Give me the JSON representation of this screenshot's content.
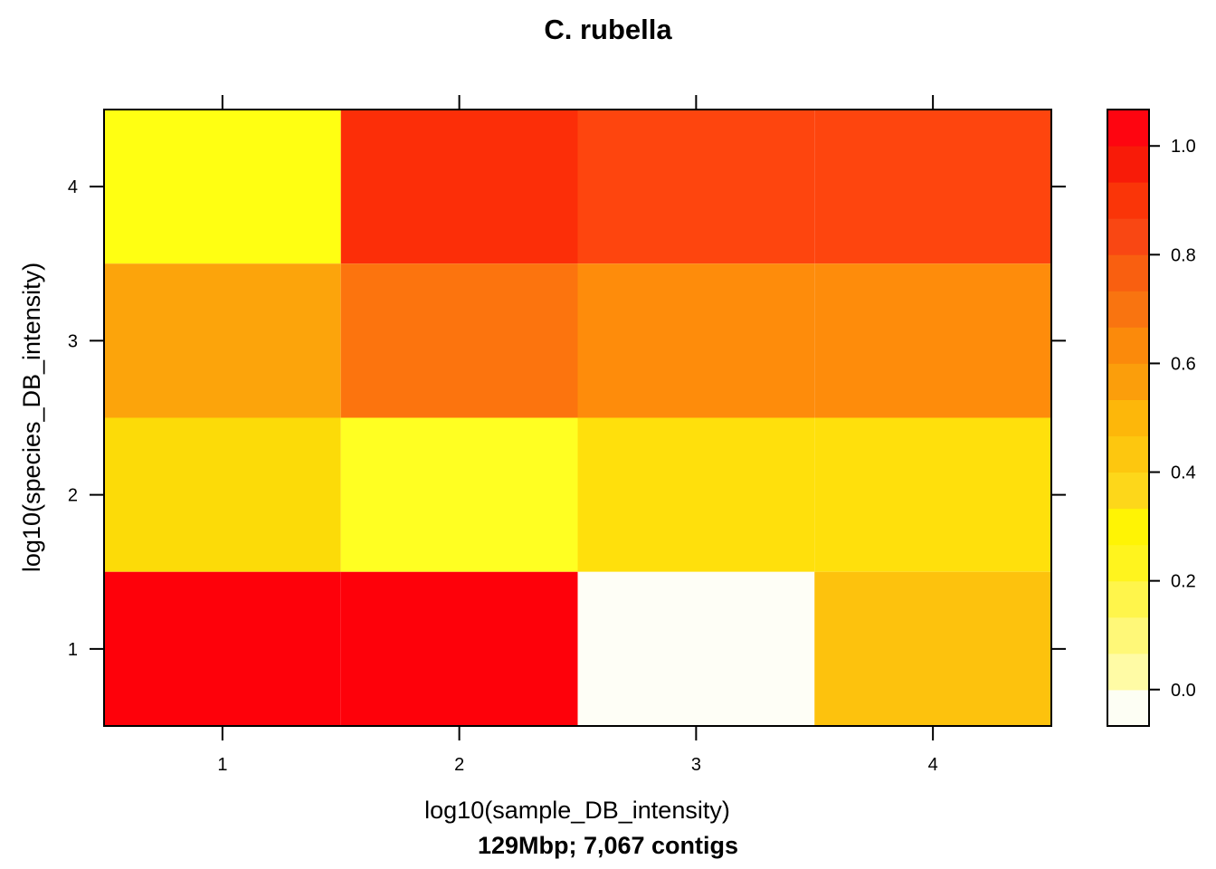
{
  "chart_data": {
    "type": "heatmap",
    "title": "C. rubella",
    "xlabel": "log10(sample_DB_intensity)",
    "ylabel": "log10(species_DB_intensity)",
    "subtitle": "129Mbp; 7,067 contigs",
    "x_ticks": [
      "1",
      "2",
      "3",
      "4"
    ],
    "y_ticks": [
      "1",
      "2",
      "3",
      "4"
    ],
    "xlim": [
      0.5,
      4.5
    ],
    "ylim": [
      0.5,
      4.5
    ],
    "colorbar": {
      "ticks": [
        "0.0",
        "0.2",
        "0.4",
        "0.6",
        "0.8",
        "1.0"
      ],
      "tick_values": [
        0.0,
        0.2,
        0.4,
        0.6,
        0.8,
        1.0
      ],
      "range": [
        -0.067,
        1.067
      ],
      "colors": [
        "#fdfef4",
        "#fffba5",
        "#fff878",
        "#fff54b",
        "#fff41e",
        "#fff404",
        "#fdd71a",
        "#fdc70f",
        "#fdb70a",
        "#fb9e0b",
        "#fb8a0b",
        "#f97410",
        "#f95f10",
        "#f94713",
        "#fa3508",
        "#f81b08",
        "#fe0510"
      ]
    },
    "cells": [
      {
        "x": 1,
        "y": 4,
        "value": 0.28,
        "color": "#ffff12"
      },
      {
        "x": 2,
        "y": 4,
        "value": 0.86,
        "color": "#fc2e08"
      },
      {
        "x": 3,
        "y": 4,
        "value": 0.8,
        "color": "#fe450e"
      },
      {
        "x": 4,
        "y": 4,
        "value": 0.8,
        "color": "#fe450e"
      },
      {
        "x": 1,
        "y": 3,
        "value": 0.52,
        "color": "#fca40b"
      },
      {
        "x": 2,
        "y": 3,
        "value": 0.66,
        "color": "#fc740e"
      },
      {
        "x": 3,
        "y": 3,
        "value": 0.57,
        "color": "#fe8c0b"
      },
      {
        "x": 4,
        "y": 3,
        "value": 0.57,
        "color": "#fe8c0b"
      },
      {
        "x": 1,
        "y": 2,
        "value": 0.36,
        "color": "#fcdb08"
      },
      {
        "x": 2,
        "y": 2,
        "value": 0.26,
        "color": "#ffff22"
      },
      {
        "x": 3,
        "y": 2,
        "value": 0.36,
        "color": "#ffe00c"
      },
      {
        "x": 4,
        "y": 2,
        "value": 0.36,
        "color": "#ffe00c"
      },
      {
        "x": 1,
        "y": 1,
        "value": 1.0,
        "color": "#fe010a"
      },
      {
        "x": 2,
        "y": 1,
        "value": 1.0,
        "color": "#fe010a"
      },
      {
        "x": 3,
        "y": 1,
        "value": 0.0,
        "color": "#fefef6"
      },
      {
        "x": 4,
        "y": 1,
        "value": 0.43,
        "color": "#fdc20d"
      }
    ]
  }
}
